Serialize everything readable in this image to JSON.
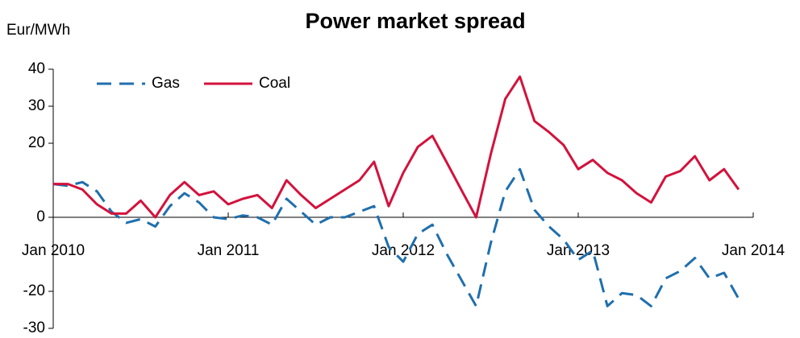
{
  "chart_data": {
    "type": "line",
    "title": "Power market spread",
    "y_label": "Eur/MWh",
    "x": [
      "2010-01",
      "2010-02",
      "2010-03",
      "2010-04",
      "2010-05",
      "2010-06",
      "2010-07",
      "2010-08",
      "2010-09",
      "2010-10",
      "2010-11",
      "2010-12",
      "2011-01",
      "2011-02",
      "2011-03",
      "2011-04",
      "2011-05",
      "2011-06",
      "2011-07",
      "2011-08",
      "2011-09",
      "2011-10",
      "2011-11",
      "2011-12",
      "2012-01",
      "2012-02",
      "2012-03",
      "2012-04",
      "2012-05",
      "2012-06",
      "2012-07",
      "2012-08",
      "2012-09",
      "2012-10",
      "2012-11",
      "2012-12",
      "2013-01",
      "2013-02",
      "2013-03",
      "2013-04",
      "2013-05",
      "2013-06",
      "2013-07",
      "2013-08",
      "2013-09",
      "2013-10",
      "2013-11",
      "2013-12"
    ],
    "series": [
      {
        "name": "Gas",
        "color": "#1f6fad",
        "dashed": true,
        "values": [
          9,
          8.5,
          9.5,
          7,
          1.5,
          -1.5,
          -0.5,
          -2.5,
          3,
          6.5,
          4,
          0,
          -0.5,
          0.5,
          0,
          -2,
          5,
          1.5,
          -2,
          0,
          0,
          1.5,
          3,
          -8,
          -12,
          -4.5,
          -2,
          -10,
          -17,
          -24,
          -7,
          7,
          13,
          2,
          -2.5,
          -6,
          -11.5,
          -9,
          -24,
          -20.5,
          -21,
          -24,
          -16.5,
          -14.5,
          -11,
          -16.5,
          -15,
          -22
        ]
      },
      {
        "name": "Coal",
        "color": "#d3123c",
        "dashed": false,
        "values": [
          9,
          9,
          7.5,
          3.5,
          1,
          1,
          4.5,
          0,
          6,
          9.5,
          6,
          7,
          3.5,
          5,
          6,
          2.5,
          10,
          6,
          2.5,
          5,
          7.5,
          10,
          15,
          3,
          12,
          19,
          22,
          14.7,
          7.3,
          0,
          17,
          32,
          38,
          26,
          23,
          19.5,
          13,
          15.5,
          12,
          10,
          6.5,
          4,
          11,
          12.5,
          16.5,
          10,
          13,
          7.5
        ]
      }
    ],
    "xticks": [
      {
        "value": "2010-01",
        "label": "Jan 2010"
      },
      {
        "value": "2011-01",
        "label": "Jan 2011"
      },
      {
        "value": "2012-01",
        "label": "Jan 2012"
      },
      {
        "value": "2013-01",
        "label": "Jan 2013"
      },
      {
        "value": "2014-01",
        "label": "Jan 2014"
      }
    ],
    "xlim": [
      "2010-01",
      "2014-01"
    ],
    "ylim": [
      -30,
      40
    ],
    "yticks": [
      -30,
      -20,
      0,
      20,
      30,
      40
    ],
    "legend": "upper-left"
  }
}
